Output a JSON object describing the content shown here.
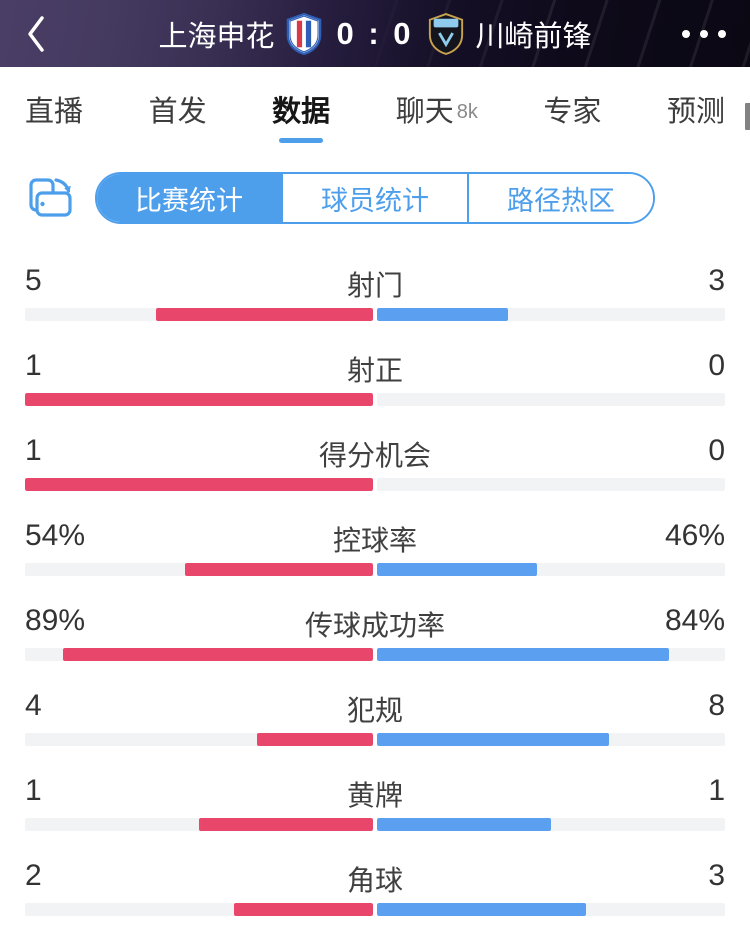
{
  "theme": {
    "accent": "#4D9FEC"
  },
  "header": {
    "home_team": "上海申花",
    "away_team": "川崎前锋",
    "score": "0 : 0",
    "icons": {
      "back": "chevron-left",
      "more": "ellipsis"
    }
  },
  "tabs": {
    "items": [
      {
        "label": "直播",
        "active": false
      },
      {
        "label": "首发",
        "active": false
      },
      {
        "label": "数据",
        "active": true
      },
      {
        "label": "聊天",
        "badge": "8k",
        "active": false
      },
      {
        "label": "专家",
        "active": false
      },
      {
        "label": "预测",
        "active": false
      }
    ]
  },
  "subtabs": {
    "items": [
      {
        "label": "比赛统计",
        "active": true
      },
      {
        "label": "球员统计",
        "active": false
      },
      {
        "label": "路径热区",
        "active": false
      }
    ]
  },
  "stats": {
    "colors": {
      "home": "#E8476B",
      "away": "#5B9FF0",
      "track": "#F1F3F5"
    },
    "rows": [
      {
        "label": "射门",
        "kind": "count",
        "home": 5,
        "away": 3,
        "home_display": "5",
        "away_display": "3"
      },
      {
        "label": "射正",
        "kind": "count",
        "home": 1,
        "away": 0,
        "home_display": "1",
        "away_display": "0"
      },
      {
        "label": "得分机会",
        "kind": "count",
        "home": 1,
        "away": 0,
        "home_display": "1",
        "away_display": "0"
      },
      {
        "label": "控球率",
        "kind": "percent",
        "home": 54,
        "away": 46,
        "home_display": "54%",
        "away_display": "46%"
      },
      {
        "label": "传球成功率",
        "kind": "percent",
        "home": 89,
        "away": 84,
        "home_display": "89%",
        "away_display": "84%"
      },
      {
        "label": "犯规",
        "kind": "count",
        "home": 4,
        "away": 8,
        "home_display": "4",
        "away_display": "8"
      },
      {
        "label": "黄牌",
        "kind": "count",
        "home": 1,
        "away": 1,
        "home_display": "1",
        "away_display": "1"
      },
      {
        "label": "角球",
        "kind": "count",
        "home": 2,
        "away": 3,
        "home_display": "2",
        "away_display": "3"
      }
    ]
  }
}
